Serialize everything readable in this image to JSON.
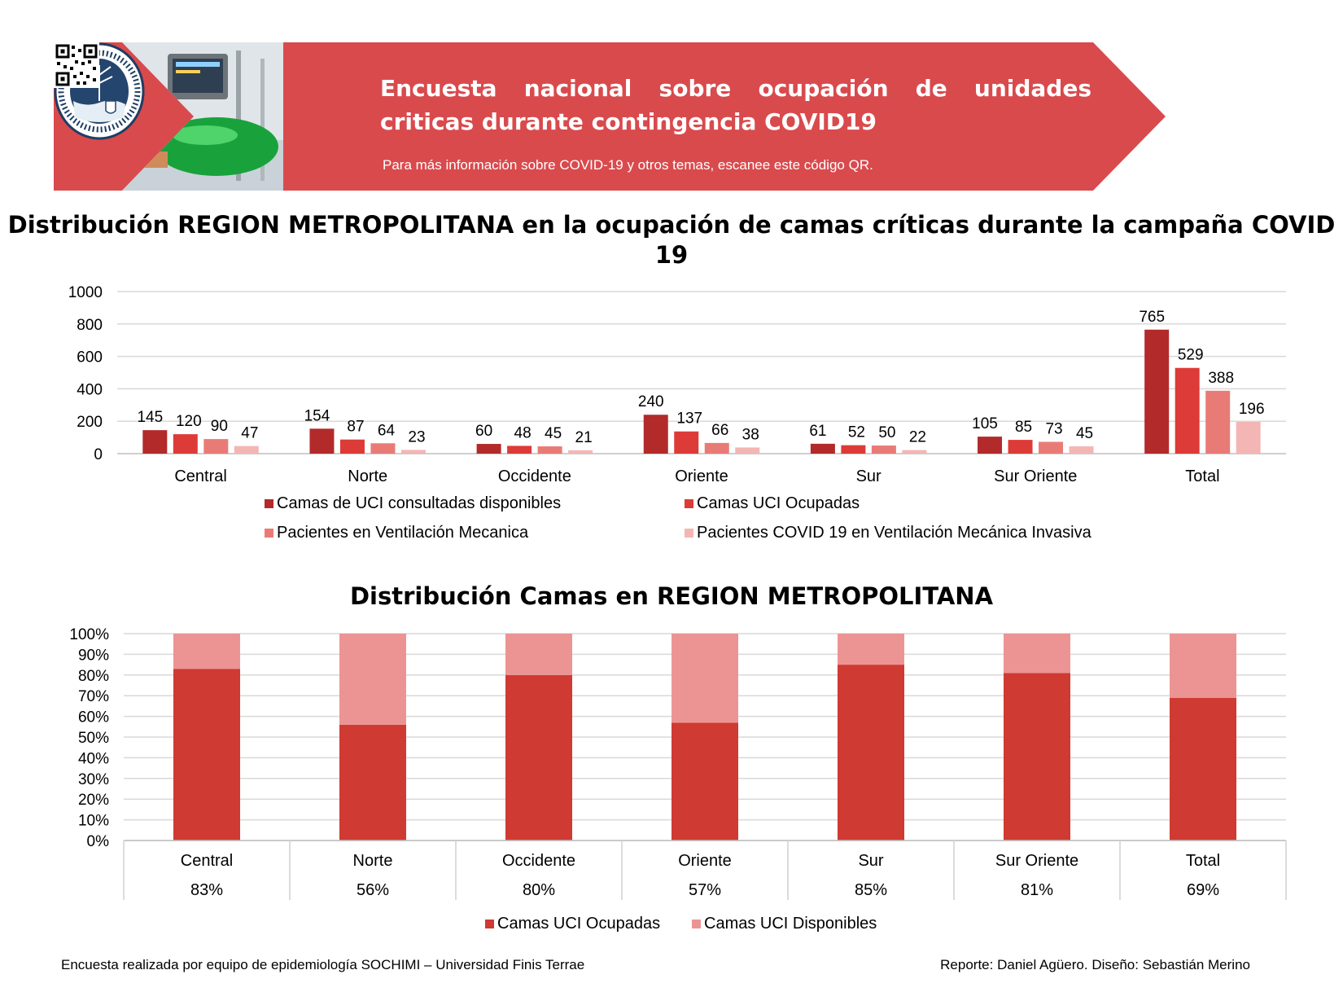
{
  "header": {
    "title": "Encuesta nacional sobre ocupación de unidades criticas durante contingencia COVID19",
    "subtitle": "Para más información sobre COVID-19 y otros temas, escanee este código QR.",
    "background_color": "#d94a4d",
    "logos": [
      {
        "name": "sochimi-logo",
        "ring_text": "SOCIEDAD CHILENA DE MEDICINA INTENSIVA"
      },
      {
        "name": "finis-terrae-logo",
        "ring_text": "UNIVERSIDAD FINIS TERRAE · VINCE IN BONO MALUM"
      }
    ],
    "qr_icon": "qr-code-icon",
    "photo_icon": "ventilator-photo"
  },
  "chart_data": [
    {
      "type": "bar",
      "title": "Distribución REGION METROPOLITANA en la ocupación de camas críticas durante la campaña COVID 19",
      "categories": [
        "Central",
        "Norte",
        "Occidente",
        "Oriente",
        "Sur",
        "Sur Oriente",
        "Total"
      ],
      "series": [
        {
          "name": "Camas de UCI consultadas disponibles",
          "color": "#b22a2a",
          "values": [
            145,
            154,
            60,
            240,
            61,
            105,
            765
          ]
        },
        {
          "name": "Camas UCI Ocupadas",
          "color": "#dd3b37",
          "values": [
            120,
            87,
            48,
            137,
            52,
            85,
            529
          ]
        },
        {
          "name": "Pacientes en Ventilación Mecanica",
          "color": "#e97b77",
          "values": [
            90,
            64,
            45,
            66,
            50,
            73,
            388
          ]
        },
        {
          "name": "Pacientes COVID 19 en Ventilación Mecánica Invasiva",
          "color": "#f3b6b4",
          "values": [
            47,
            23,
            21,
            38,
            22,
            45,
            196
          ]
        }
      ],
      "ylim": [
        0,
        1000
      ],
      "yticks": [
        "0",
        "200",
        "400",
        "600",
        "800",
        "1000"
      ],
      "grid": true,
      "legend_position": "bottom"
    },
    {
      "type": "bar",
      "stacked": true,
      "title": "Distribución Camas en REGION METROPOLITANA",
      "categories": [
        "Central",
        "Norte",
        "Occidente",
        "Oriente",
        "Sur",
        "Sur Oriente",
        "Total"
      ],
      "series": [
        {
          "name": "Camas UCI Ocupadas",
          "color": "#cf3a32",
          "values": [
            83,
            56,
            80,
            57,
            85,
            81,
            69
          ]
        },
        {
          "name": "Camas UCI Disponibles",
          "color": "#ec9493",
          "values": [
            17,
            44,
            20,
            43,
            15,
            19,
            31
          ]
        }
      ],
      "table_row": [
        "83%",
        "56%",
        "80%",
        "57%",
        "85%",
        "81%",
        "69%"
      ],
      "ylim": [
        0,
        100
      ],
      "yticks": [
        "0%",
        "10%",
        "20%",
        "30%",
        "40%",
        "50%",
        "60%",
        "70%",
        "80%",
        "90%",
        "100%"
      ],
      "grid": true,
      "legend_position": "bottom"
    }
  ],
  "footer": {
    "left": "Encuesta realizada por equipo de epidemiología SOCHIMI – Universidad Finis Terrae",
    "right": "Reporte: Daniel Agüero. Diseño: Sebastián Merino"
  }
}
